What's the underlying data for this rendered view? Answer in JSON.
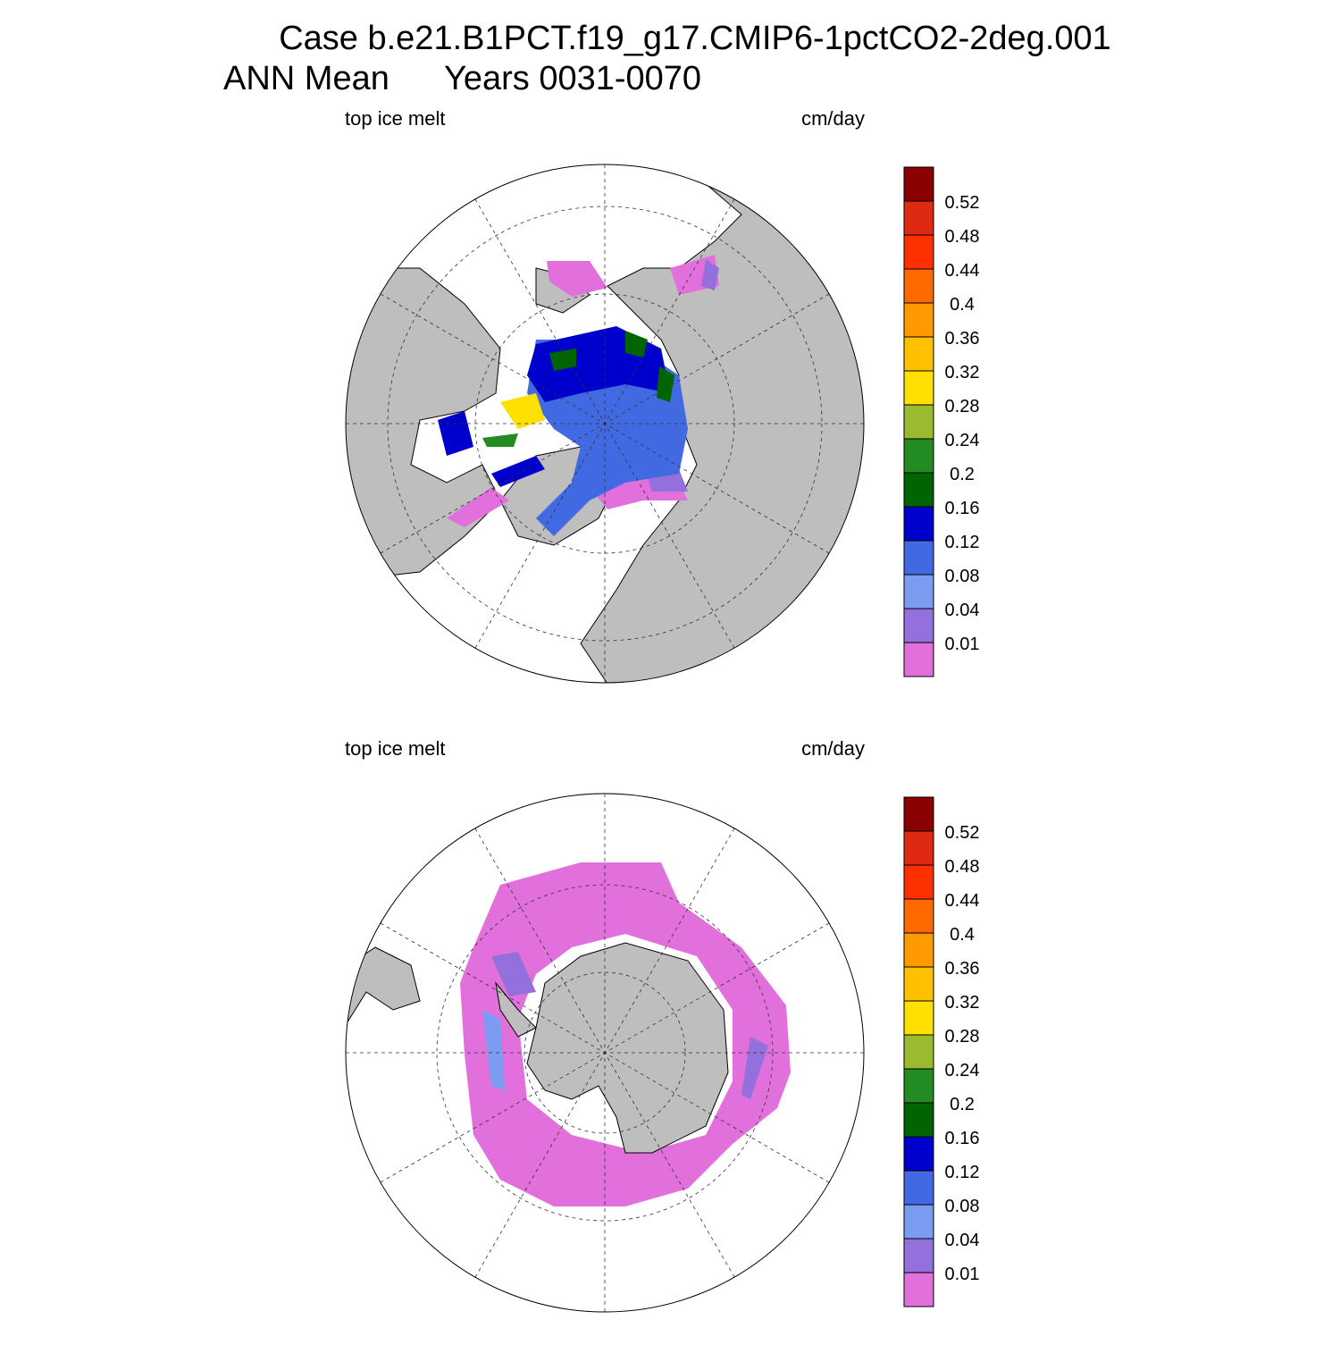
{
  "title": {
    "line1": "Case b.e21.B1PCT.f19_g17.CMIP6-1pctCO2-2deg.001",
    "line2_left": "ANN Mean",
    "line2_right": "Years 0031-0070"
  },
  "panels": [
    {
      "left_label": "top ice melt",
      "right_label": "cm/day",
      "colorbar": {
        "levels": [
          0.01,
          0.04,
          0.08,
          0.12,
          0.16,
          0.2,
          0.24,
          0.28,
          0.32,
          0.36,
          0.4,
          0.44,
          0.48,
          0.52
        ],
        "colors": [
          "#e270dc",
          "#9370db",
          "#7b9cf0",
          "#4169e1",
          "#0000cd",
          "#006400",
          "#228b22",
          "#9aba30",
          "#ffe000",
          "#ffc000",
          "#ff9a00",
          "#ff6a00",
          "#ff3000",
          "#dd2a10",
          "#8b0000"
        ]
      }
    },
    {
      "left_label": "top ice melt",
      "right_label": "cm/day",
      "colorbar": {
        "levels": [
          0.01,
          0.04,
          0.08,
          0.12,
          0.16,
          0.2,
          0.24,
          0.28,
          0.32,
          0.36,
          0.4,
          0.44,
          0.48,
          0.52
        ],
        "colors": [
          "#e270dc",
          "#9370db",
          "#7b9cf0",
          "#4169e1",
          "#0000cd",
          "#006400",
          "#228b22",
          "#9aba30",
          "#ffe000",
          "#ffc000",
          "#ff9a00",
          "#ff6a00",
          "#ff3000",
          "#dd2a10",
          "#8b0000"
        ]
      }
    }
  ]
}
